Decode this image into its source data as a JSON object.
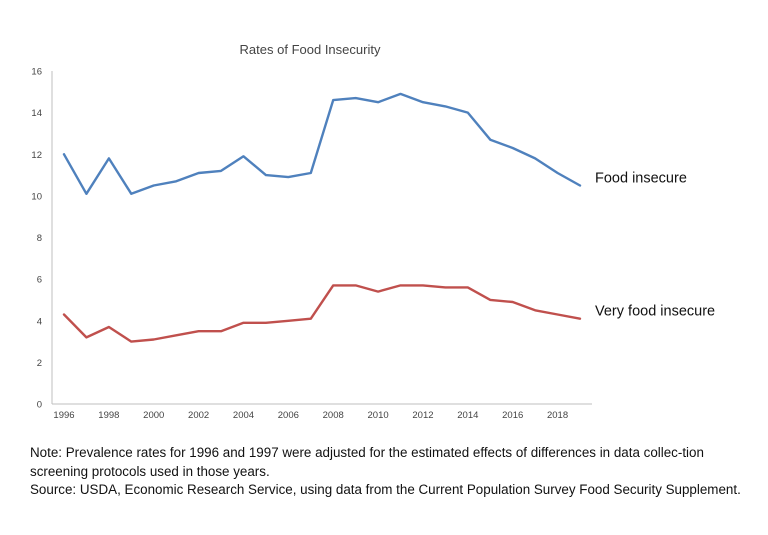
{
  "chart_data": {
    "type": "line",
    "title": "Rates of Food Insecurity",
    "xlabel": "",
    "ylabel": "",
    "ylim": [
      0,
      16
    ],
    "yticks": [
      0,
      2,
      4,
      6,
      8,
      10,
      12,
      14,
      16
    ],
    "xlim": [
      1996,
      2019
    ],
    "xticks": [
      1996,
      1998,
      2000,
      2002,
      2004,
      2006,
      2008,
      2010,
      2012,
      2014,
      2016,
      2018
    ],
    "grid": false,
    "x": [
      1996,
      1997,
      1998,
      1999,
      2000,
      2001,
      2002,
      2003,
      2004,
      2005,
      2006,
      2007,
      2008,
      2009,
      2010,
      2011,
      2012,
      2013,
      2014,
      2015,
      2016,
      2017,
      2018,
      2019
    ],
    "series": [
      {
        "name": "Food insecure",
        "color": "#4f81bd",
        "values": [
          12.0,
          10.1,
          11.8,
          10.1,
          10.5,
          10.7,
          11.1,
          11.2,
          11.9,
          11.0,
          10.9,
          11.1,
          14.6,
          14.7,
          14.5,
          14.9,
          14.5,
          14.3,
          14.0,
          12.7,
          12.3,
          11.8,
          11.1,
          10.5
        ]
      },
      {
        "name": "Very food insecure",
        "color": "#c0504d",
        "values": [
          4.3,
          3.2,
          3.7,
          3.0,
          3.1,
          3.3,
          3.5,
          3.5,
          3.9,
          3.9,
          4.0,
          4.1,
          5.7,
          5.7,
          5.4,
          5.7,
          5.7,
          5.6,
          5.6,
          5.0,
          4.9,
          4.5,
          4.3,
          4.1
        ]
      }
    ]
  },
  "notes": {
    "line1": "Note: Prevalence rates for 1996 and 1997 were adjusted for the estimated effects of differences in data collec-tion screening protocols used in those years.",
    "line2": "Source: USDA, Economic Research Service, using data from the Current Population Survey Food Security Supplement."
  }
}
